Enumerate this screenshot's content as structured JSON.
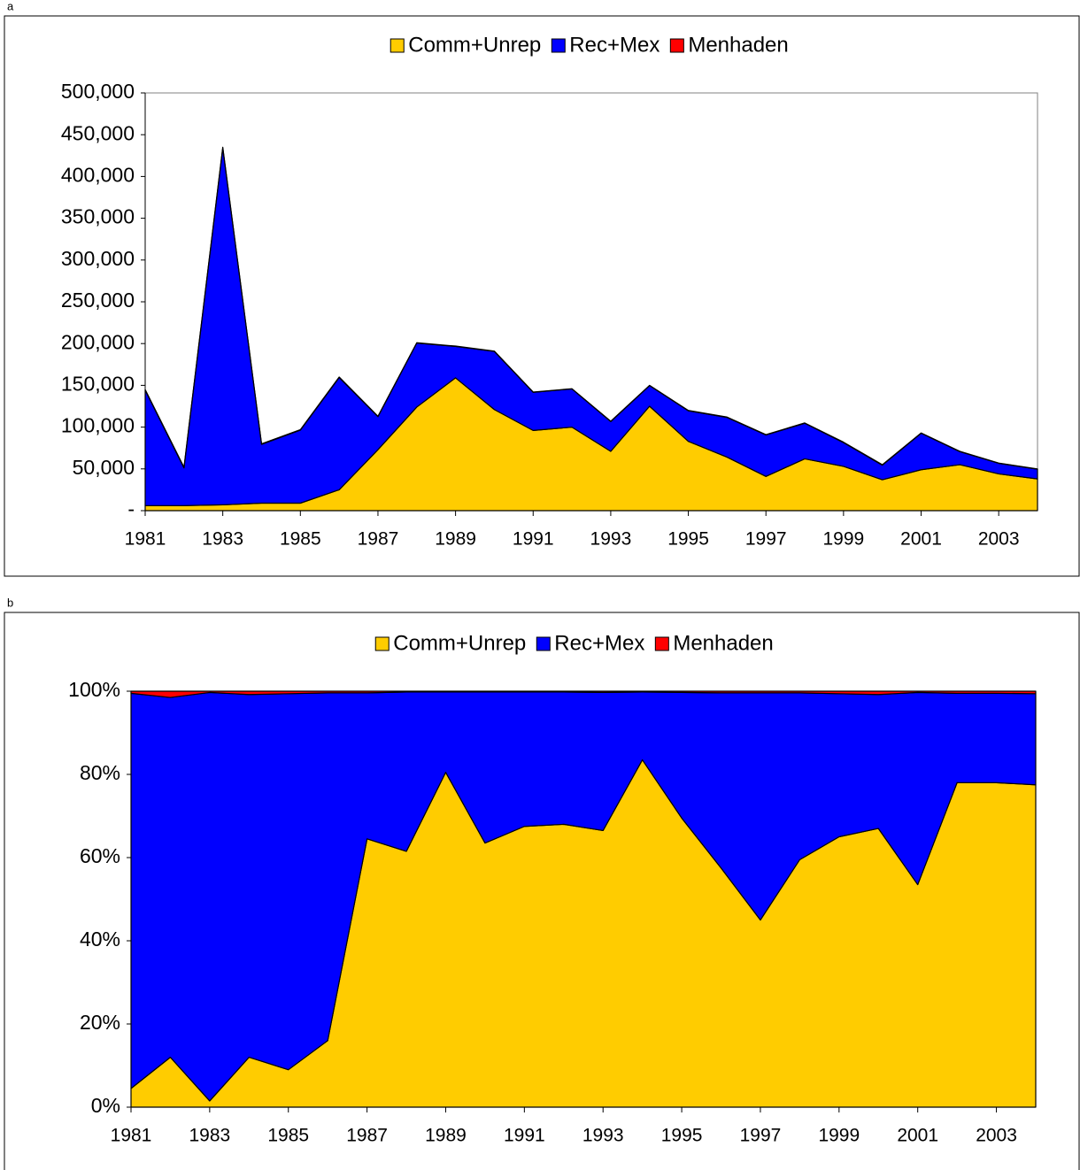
{
  "chart_data": [
    {
      "type": "area",
      "stacked": true,
      "label": "a",
      "x": [
        1981,
        1982,
        1983,
        1984,
        1985,
        1986,
        1987,
        1988,
        1989,
        1990,
        1991,
        1992,
        1993,
        1994,
        1995,
        1996,
        1997,
        1998,
        1999,
        2000,
        2001,
        2002,
        2003,
        2004
      ],
      "series": [
        {
          "name": "Comm+Unrep",
          "color": "#FFCC00",
          "values": [
            6000,
            6000,
            7000,
            9000,
            9000,
            25000,
            73000,
            124000,
            159000,
            121000,
            96000,
            100000,
            71000,
            125000,
            83000,
            64000,
            41000,
            62000,
            53000,
            37000,
            49000,
            55000,
            44000,
            38000
          ]
        },
        {
          "name": "Rec+Mex",
          "color": "#0000FF",
          "values": [
            138300,
            45200,
            427100,
            70400,
            87400,
            134400,
            39600,
            76600,
            37600,
            69600,
            45700,
            45700,
            35700,
            24700,
            36600,
            47600,
            49600,
            42600,
            28500,
            17500,
            43700,
            15600,
            12700,
            11600
          ]
        },
        {
          "name": "Menhaden",
          "color": "#FF0000",
          "values": [
            700,
            800,
            900,
            600,
            600,
            600,
            400,
            400,
            400,
            400,
            300,
            300,
            300,
            300,
            400,
            400,
            400,
            400,
            500,
            500,
            300,
            400,
            300,
            400
          ]
        }
      ],
      "xlim": [
        1981,
        2004
      ],
      "xticks": [
        1981,
        1983,
        1985,
        1987,
        1989,
        1991,
        1993,
        1995,
        1997,
        1999,
        2001,
        2003
      ],
      "ylim": [
        0,
        500000
      ],
      "yticks": [
        {
          "value": 0,
          "label": "-"
        },
        {
          "value": 50000,
          "label": "50,000"
        },
        {
          "value": 100000,
          "label": "100,000"
        },
        {
          "value": 150000,
          "label": "150,000"
        },
        {
          "value": 200000,
          "label": "200,000"
        },
        {
          "value": 250000,
          "label": "250,000"
        },
        {
          "value": 300000,
          "label": "300,000"
        },
        {
          "value": 350000,
          "label": "350,000"
        },
        {
          "value": 400000,
          "label": "400,000"
        },
        {
          "value": 450000,
          "label": "450,000"
        },
        {
          "value": 500000,
          "label": "500,000"
        }
      ],
      "legend": "top"
    },
    {
      "type": "area",
      "stacked": true,
      "label": "b",
      "x": [
        1981,
        1982,
        1983,
        1984,
        1985,
        1986,
        1987,
        1988,
        1989,
        1990,
        1991,
        1992,
        1993,
        1994,
        1995,
        1996,
        1997,
        1998,
        1999,
        2000,
        2001,
        2002,
        2003,
        2004
      ],
      "series": [
        {
          "name": "Comm+Unrep",
          "color": "#FFCC00",
          "values": [
            4.5,
            12,
            1.5,
            12,
            9,
            16,
            64.5,
            61.5,
            80.5,
            63.5,
            67.5,
            68,
            66.5,
            83.5,
            69.5,
            57.5,
            45,
            59.5,
            65,
            67,
            53.5,
            78,
            78,
            77.5
          ]
        },
        {
          "name": "Rec+Mex",
          "color": "#0000FF",
          "values": [
            95.0,
            86.5,
            98.2,
            87.2,
            90.4,
            83.6,
            35.1,
            38.3,
            19.3,
            36.3,
            32.3,
            31.8,
            33.2,
            16.3,
            30.2,
            42.1,
            54.6,
            40.1,
            34.4,
            32.2,
            46.2,
            21.5,
            21.5,
            21.9
          ]
        },
        {
          "name": "Menhaden",
          "color": "#FF0000",
          "values": [
            0.5,
            1.5,
            0.3,
            0.8,
            0.6,
            0.4,
            0.4,
            0.2,
            0.2,
            0.2,
            0.2,
            0.2,
            0.3,
            0.2,
            0.3,
            0.4,
            0.4,
            0.4,
            0.6,
            0.8,
            0.3,
            0.5,
            0.5,
            0.6
          ]
        }
      ],
      "xlim": [
        1981,
        2004
      ],
      "xticks": [
        1981,
        1983,
        1985,
        1987,
        1989,
        1991,
        1993,
        1995,
        1997,
        1999,
        2001,
        2003
      ],
      "ylim": [
        0,
        100
      ],
      "yticks": [
        {
          "value": 0,
          "label": "0%"
        },
        {
          "value": 20,
          "label": "20%"
        },
        {
          "value": 40,
          "label": "40%"
        },
        {
          "value": 60,
          "label": "60%"
        },
        {
          "value": 80,
          "label": "80%"
        },
        {
          "value": 100,
          "label": "100%"
        }
      ],
      "legend": "top"
    }
  ]
}
